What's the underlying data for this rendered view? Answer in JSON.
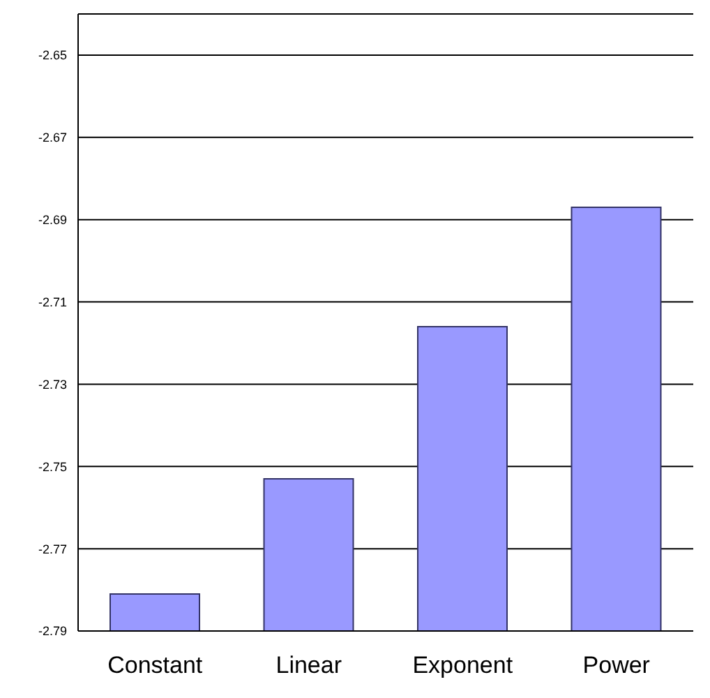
{
  "chart_data": {
    "type": "bar",
    "categories": [
      "Constant",
      "Linear",
      "Exponent",
      "Power"
    ],
    "base": [
      -2.79,
      -2.79,
      -2.79,
      -2.79
    ],
    "values": [
      0.009,
      0.037,
      0.074,
      0.103
    ],
    "color": "#9999ff",
    "ylim": [
      -2.79,
      -2.64
    ],
    "yticks": [
      -2.79,
      -2.77,
      -2.75,
      -2.73,
      -2.71,
      -2.69,
      -2.67,
      -2.65
    ],
    "grid": "y"
  }
}
